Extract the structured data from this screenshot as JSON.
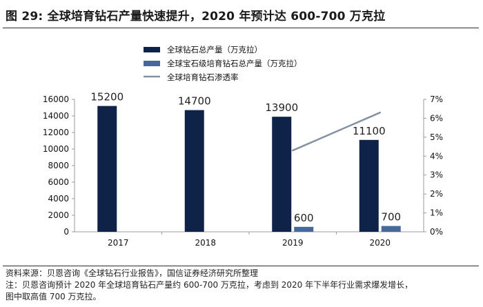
{
  "header": {
    "title": "图 29:  全球培育钻石产量快速提升，2020 年预计达 600-700 万克拉"
  },
  "chart_data": {
    "type": "bar",
    "categories": [
      "2017",
      "2018",
      "2019",
      "2020"
    ],
    "series": [
      {
        "name": "全球钻石总产量（万克拉）",
        "kind": "bar",
        "axis": "left",
        "values": [
          15200,
          14700,
          13900,
          11100
        ],
        "labels": [
          "15200",
          "14700",
          "13900",
          "11100"
        ]
      },
      {
        "name": "全球宝石级培育钻石总产量（万克拉）",
        "kind": "bar",
        "axis": "left",
        "values": [
          null,
          null,
          600,
          700
        ],
        "labels": [
          "",
          "",
          "600",
          "700"
        ]
      },
      {
        "name": "全球培育钻石渗透率",
        "kind": "line",
        "axis": "right",
        "values": [
          null,
          null,
          0.043,
          0.063
        ]
      }
    ],
    "y_left": {
      "min": 0,
      "max": 16000,
      "ticks": [
        "0",
        "2000",
        "4000",
        "6000",
        "8000",
        "10000",
        "12000",
        "14000",
        "16000"
      ]
    },
    "y_right": {
      "min": 0,
      "max": 0.07,
      "ticks": [
        "0%",
        "1%",
        "2%",
        "3%",
        "4%",
        "5%",
        "6%",
        "7%"
      ]
    },
    "legend_position": "top-center",
    "grid": false,
    "colors": {
      "total": "#0f2247",
      "lab": "#44699a",
      "rate": "#8391a1"
    }
  },
  "footer": {
    "source": "资料来源：贝恩咨询《全球钻石行业报告》，国信证券经济研究所整理",
    "note_line1": "注：贝恩咨询预计 2020 年全球培育钻石产量约 600-700 万克拉，考虑到 2020 年下半年行业需求爆发增长，",
    "note_line2": "图中取高值 700 万克拉。"
  }
}
